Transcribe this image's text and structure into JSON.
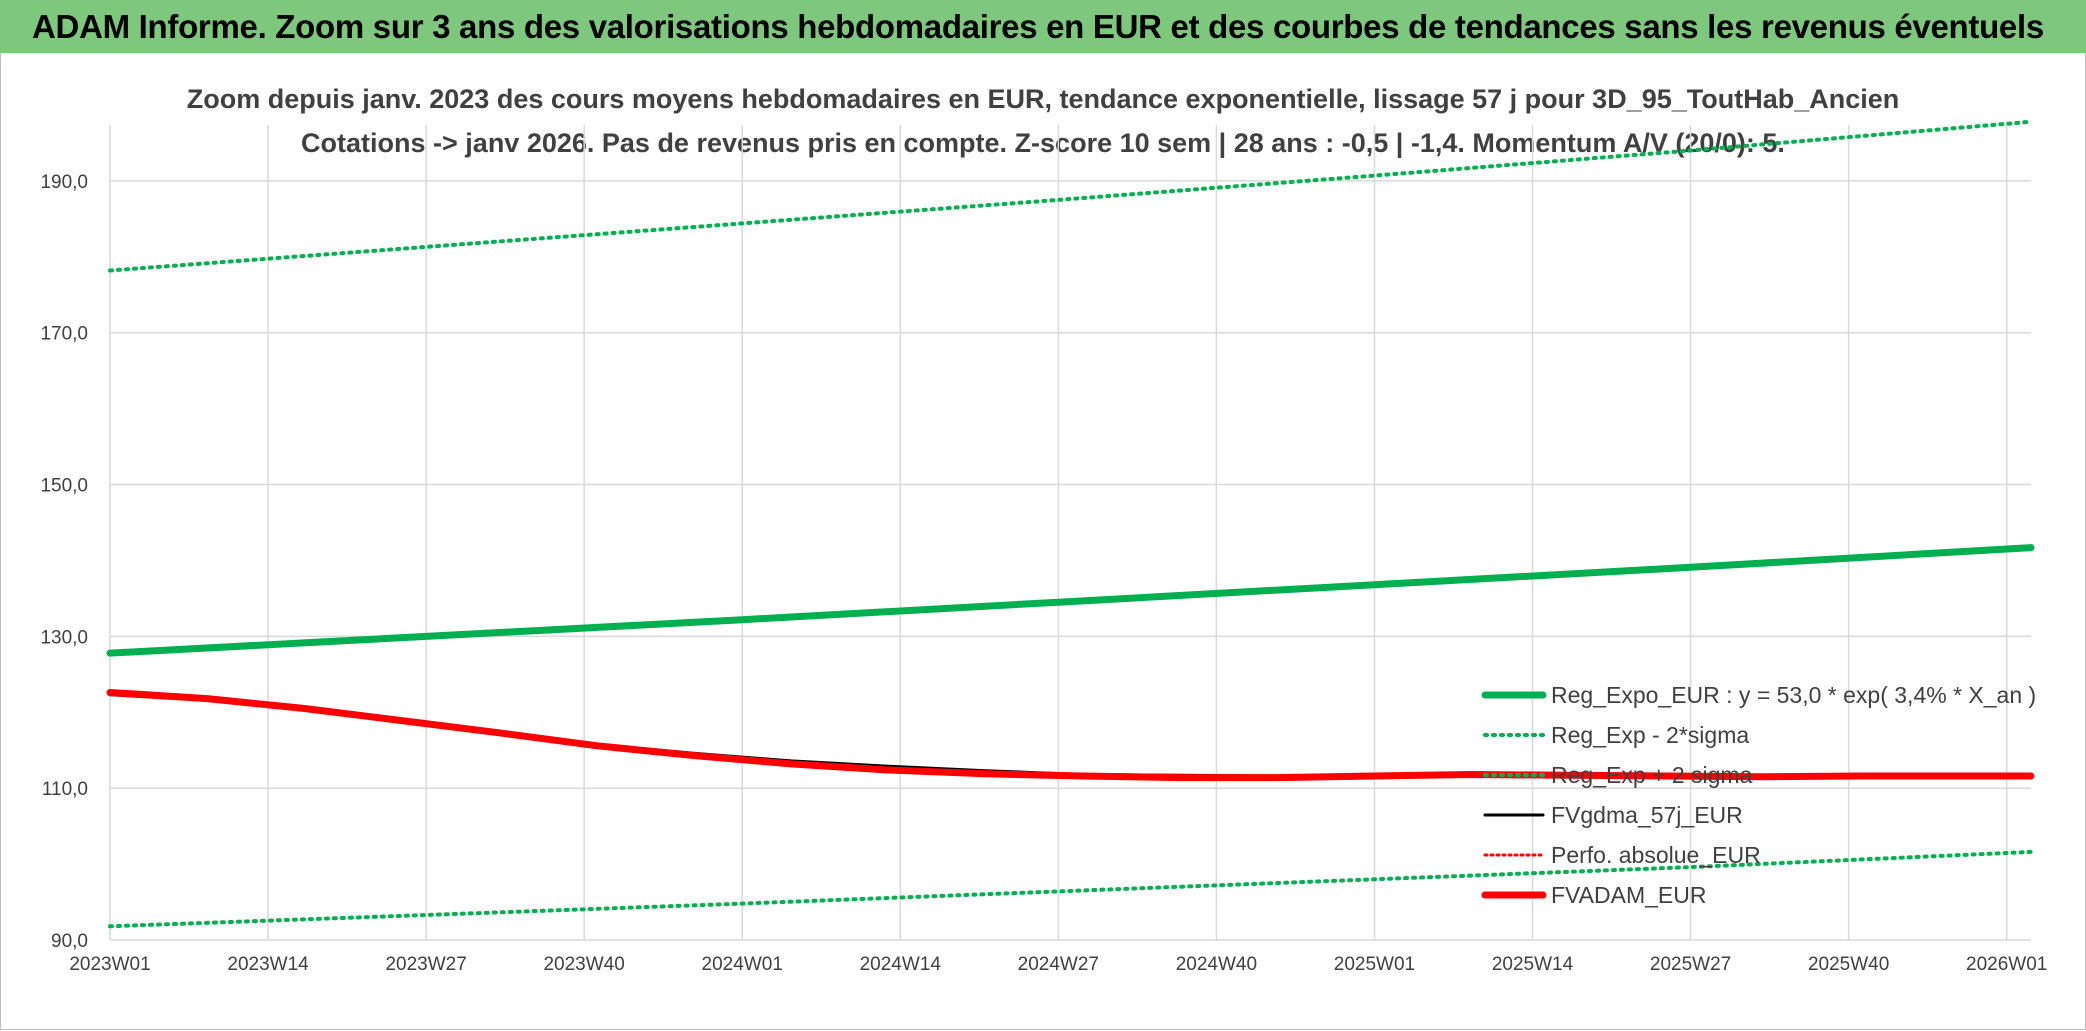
{
  "banner": {
    "title": "ADAM Informe. Zoom sur 3 ans des valorisations hebdomadaires en EUR et des courbes de tendances sans les revenus éventuels"
  },
  "colors": {
    "banner": "#7dc87d",
    "trend": "#00b050",
    "fvgdma": "#000000",
    "fvadam": "#ff0000",
    "perfo": "#ff0000",
    "grid": "#d9d9d9"
  },
  "chart_data": {
    "type": "line",
    "title": "Zoom depuis janv. 2023 des cours moyens hebdomadaires en EUR, tendance exponentielle, lissage 57 j pour 3D_95_ToutHab_Ancien",
    "subtitle": "Cotations -> janv 2026. Pas de revenus pris en compte. Z-score 10 sem | 28 ans : -0,5 | -1,4. Momentum A/V (20/0): 5.",
    "xlabel": "",
    "ylabel": "",
    "ylim": [
      90,
      200
    ],
    "xrange": [
      0,
      158
    ],
    "y_ticks": [
      "90,0",
      "110,0",
      "130,0",
      "150,0",
      "170,0",
      "190,0"
    ],
    "y_tick_values": [
      90,
      110,
      130,
      150,
      170,
      190
    ],
    "x_tick_labels": [
      "2023W01",
      "2023W14",
      "2023W27",
      "2023W40",
      "2024W01",
      "2024W14",
      "2024W27",
      "2024W40",
      "2025W01",
      "2025W14",
      "2025W27",
      "2025W40",
      "2026W01"
    ],
    "x_tick_weeks": [
      0,
      13,
      26,
      39,
      52,
      65,
      78,
      91,
      104,
      117,
      130,
      143,
      156
    ],
    "grid": true,
    "legend_position": "bottom-right",
    "series": [
      {
        "id": "reg_plus",
        "name": "Reg_Exp + 2 sigma",
        "color": "#00b050",
        "style": "dotted",
        "x": [
          0,
          26,
          52,
          78,
          104,
          130,
          158
        ],
        "values": [
          178.2,
          181.3,
          184.4,
          187.5,
          190.7,
          194.0,
          197.8
        ]
      },
      {
        "id": "reg_expo",
        "name": "Reg_Expo_EUR : y = 53,0 * exp( 3,4% *  X_an )",
        "color": "#00b050",
        "style": "solid-thick",
        "x": [
          0,
          26,
          52,
          78,
          104,
          130,
          158
        ],
        "values": [
          127.8,
          130.0,
          132.2,
          134.5,
          136.8,
          139.1,
          141.7
        ]
      },
      {
        "id": "reg_minus",
        "name": "Reg_Exp - 2*sigma",
        "color": "#00b050",
        "style": "dotted",
        "x": [
          0,
          26,
          52,
          78,
          104,
          130,
          158
        ],
        "values": [
          91.8,
          93.3,
          94.8,
          96.4,
          98.0,
          99.6,
          101.6
        ]
      },
      {
        "id": "fvgdma",
        "name": "FVgdma_57j_EUR",
        "color": "#000000",
        "style": "solid",
        "x": [
          0,
          8,
          16,
          24,
          32,
          40,
          48,
          56,
          64,
          72,
          80,
          88,
          96,
          104,
          112,
          120,
          128,
          136,
          144,
          152,
          158
        ],
        "values": [
          122.3,
          121.6,
          120.4,
          118.9,
          117.4,
          115.8,
          114.6,
          113.6,
          112.9,
          112.3,
          111.8,
          111.7,
          111.6,
          111.7,
          111.8,
          111.8,
          111.7,
          111.6,
          111.6,
          111.6,
          111.6
        ]
      },
      {
        "id": "perfo",
        "name": "Perfo. absolue_EUR",
        "color": "#ff0000",
        "style": "dotted-thin",
        "x": [],
        "values": []
      },
      {
        "id": "fvadam",
        "name": "FVADAM_EUR",
        "color": "#ff0000",
        "style": "solid-thick",
        "x": [
          0,
          8,
          16,
          24,
          32,
          40,
          48,
          56,
          64,
          72,
          80,
          88,
          96,
          104,
          112,
          120,
          128,
          136,
          144,
          152,
          158
        ],
        "values": [
          122.6,
          121.8,
          120.5,
          118.9,
          117.3,
          115.6,
          114.3,
          113.2,
          112.4,
          111.9,
          111.6,
          111.4,
          111.4,
          111.6,
          111.8,
          111.7,
          111.6,
          111.5,
          111.6,
          111.6,
          111.6
        ]
      }
    ],
    "legend": [
      {
        "series": "reg_expo",
        "label": "Reg_Expo_EUR : y = 53,0 * exp( 3,4% *  X_an )"
      },
      {
        "series": "reg_minus",
        "label": "Reg_Exp - 2*sigma"
      },
      {
        "series": "reg_plus",
        "label": "Reg_Exp + 2 sigma"
      },
      {
        "series": "fvgdma",
        "label": "FVgdma_57j_EUR"
      },
      {
        "series": "perfo",
        "label": "Perfo. absolue_EUR"
      },
      {
        "series": "fvadam",
        "label": "FVADAM_EUR"
      }
    ]
  }
}
